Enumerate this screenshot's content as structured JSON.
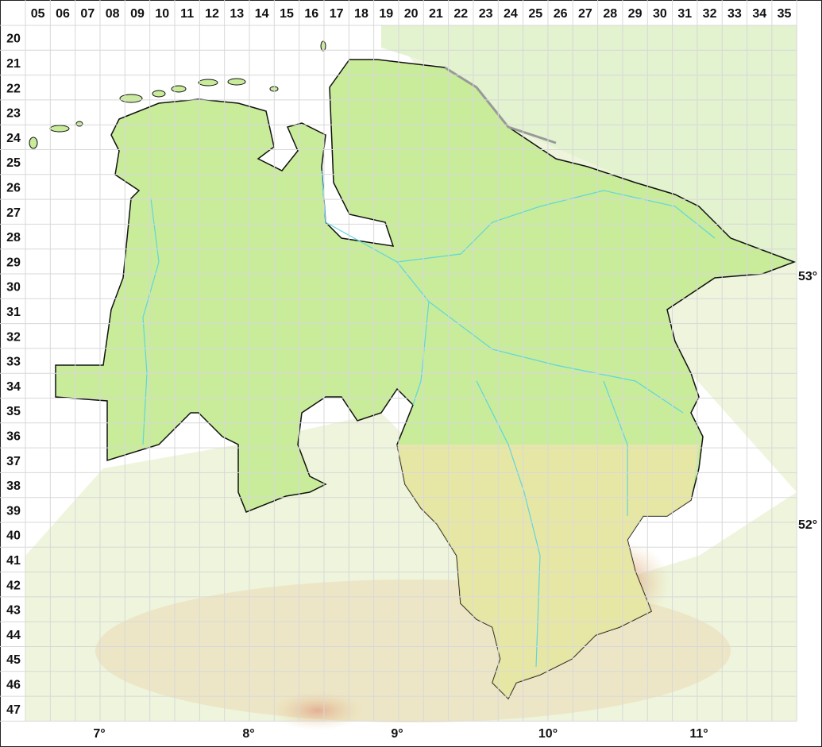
{
  "map": {
    "columns": [
      "05",
      "06",
      "07",
      "08",
      "09",
      "10",
      "11",
      "12",
      "13",
      "14",
      "15",
      "16",
      "17",
      "18",
      "19",
      "20",
      "21",
      "22",
      "23",
      "24",
      "25",
      "26",
      "27",
      "28",
      "29",
      "30",
      "31",
      "32",
      "33",
      "34",
      "35"
    ],
    "rows": [
      "20",
      "21",
      "22",
      "23",
      "24",
      "25",
      "26",
      "27",
      "28",
      "29",
      "30",
      "31",
      "32",
      "33",
      "34",
      "35",
      "36",
      "37",
      "38",
      "39",
      "40",
      "41",
      "42",
      "43",
      "44",
      "45",
      "46",
      "47"
    ],
    "longitude_labels": [
      "7°",
      "8°",
      "9°",
      "10°",
      "11°"
    ],
    "latitude_labels": [
      "53°",
      "52°"
    ],
    "colors": {
      "region_fill": "#c8ec9a",
      "background_lowland": "#eef5dc",
      "upland": "#e6c98c",
      "highland": "#d98a6e",
      "river": "#5ed6e0",
      "border": "#111111",
      "grid": "#d8d8d8"
    }
  }
}
